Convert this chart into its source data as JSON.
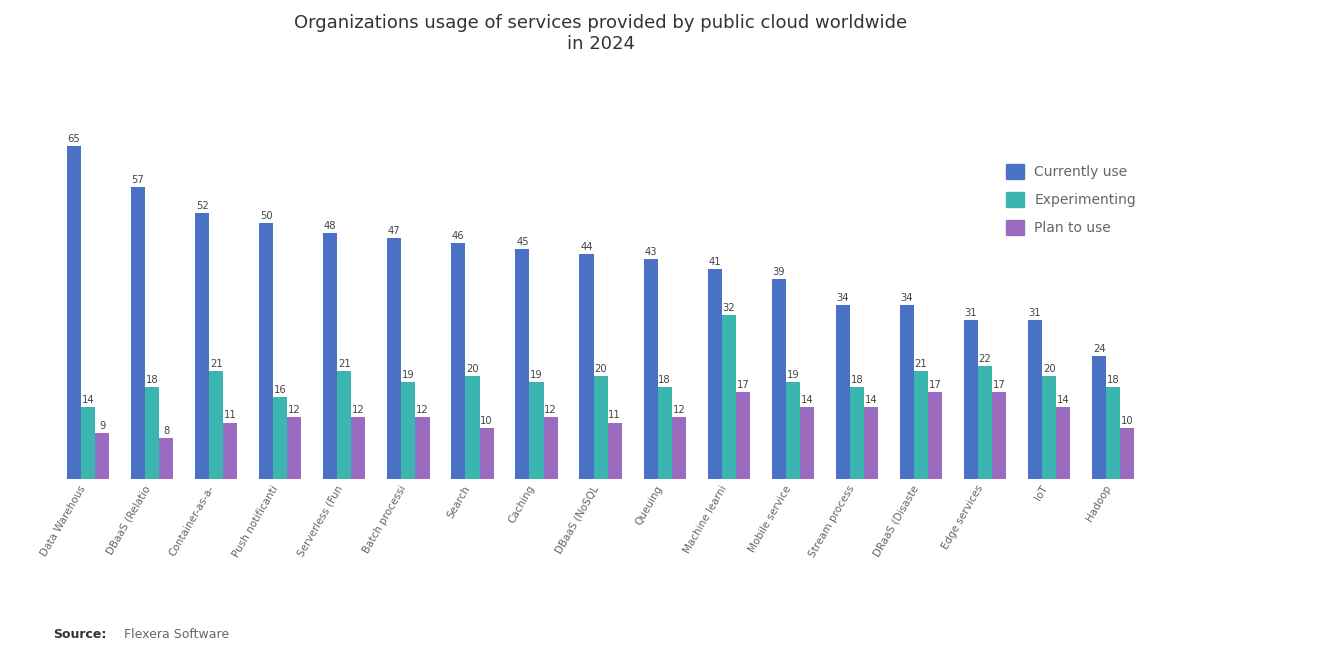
{
  "title": "Organizations usage of services provided by public cloud worldwide\nin 2024",
  "categories": [
    "Data Warehous",
    "DBaaS (Relatio",
    "Container-as-a-",
    "Push notificanti",
    "Serverless (Fun",
    "Batch processi",
    "Search",
    "Caching",
    "DBaaS (NoSQL",
    "Queuing",
    "Machine learni",
    "Mobile service",
    "Stream process",
    "DRaaS (Disaste",
    "Edge services",
    "IoT",
    "Hadoop"
  ],
  "currently_use": [
    65,
    57,
    52,
    50,
    48,
    47,
    46,
    45,
    44,
    43,
    41,
    39,
    34,
    34,
    31,
    31,
    24
  ],
  "experimenting": [
    14,
    18,
    21,
    16,
    21,
    19,
    20,
    19,
    20,
    18,
    32,
    19,
    18,
    21,
    22,
    20,
    18
  ],
  "plan_to_use": [
    9,
    8,
    11,
    12,
    12,
    12,
    10,
    12,
    11,
    12,
    17,
    14,
    14,
    17,
    17,
    14,
    10
  ],
  "color_currently": "#4a72c4",
  "color_experimenting": "#3ab5b0",
  "color_plan": "#9b6bbf",
  "source_bold": "Source:",
  "source_rest": "  Flexera Software",
  "legend_labels": [
    "Currently use",
    "Experimenting",
    "Plan to use"
  ],
  "bar_width": 0.22,
  "ylim": [
    0,
    78
  ],
  "title_fontsize": 13,
  "tick_fontsize": 7.5,
  "annotation_fontsize": 7.2
}
